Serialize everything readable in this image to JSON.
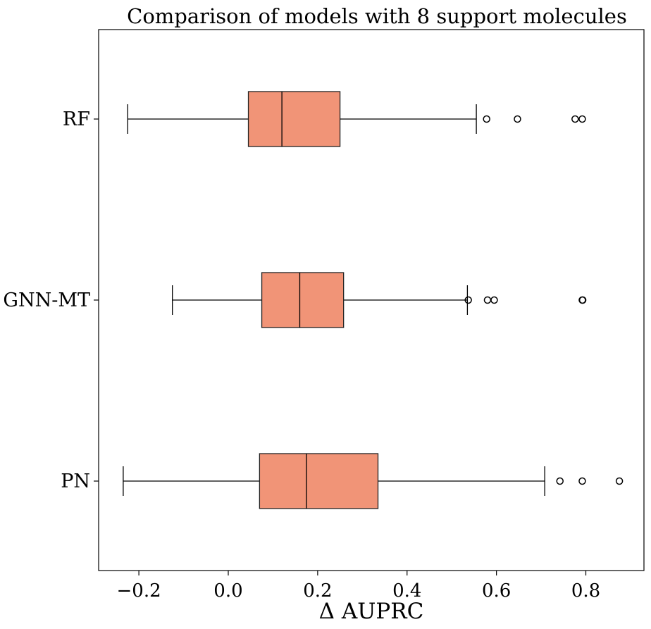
{
  "chart_data": {
    "type": "boxplot",
    "orientation": "horizontal",
    "title": "Comparison of models with 8 support molecules",
    "xlabel": "Δ AUPRC",
    "ylabel": "",
    "xlim": [
      -0.29,
      0.93
    ],
    "xticks": [
      -0.2,
      0.0,
      0.2,
      0.4,
      0.6,
      0.8
    ],
    "xtick_labels": [
      "−0.2",
      "0.0",
      "0.2",
      "0.4",
      "0.6",
      "0.8"
    ],
    "box_color": "#f19477",
    "edge_color": "#222222",
    "categories": [
      "RF",
      "GNN-MT",
      "PN"
    ],
    "series": [
      {
        "category": "RF",
        "whisker_low": -0.225,
        "q1": 0.045,
        "median": 0.12,
        "q3": 0.25,
        "whisker_high": 0.555,
        "outliers": [
          0.578,
          0.647,
          0.776,
          0.792
        ]
      },
      {
        "category": "GNN-MT",
        "whisker_low": -0.125,
        "q1": 0.075,
        "median": 0.16,
        "q3": 0.258,
        "whisker_high": 0.535,
        "outliers": [
          0.537,
          0.58,
          0.595,
          0.792,
          0.793
        ]
      },
      {
        "category": "PN",
        "whisker_low": -0.235,
        "q1": 0.07,
        "median": 0.175,
        "q3": 0.335,
        "whisker_high": 0.708,
        "outliers": [
          0.742,
          0.792,
          0.875
        ]
      }
    ]
  }
}
